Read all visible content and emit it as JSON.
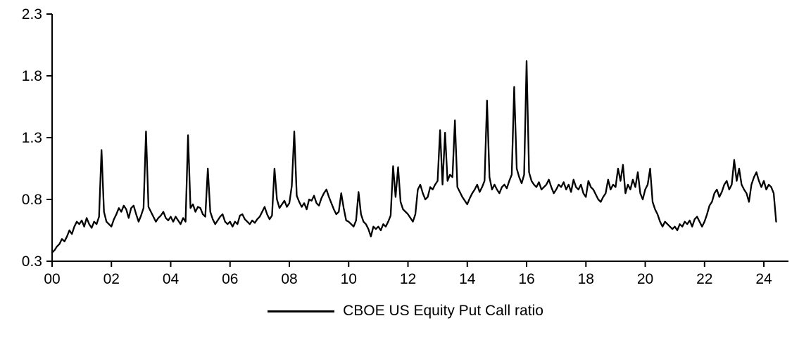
{
  "chart_data": {
    "type": "line",
    "title": "",
    "xlabel": "",
    "ylabel": "",
    "series_name": "CBOE US Equity Put Call ratio",
    "line_color": "#000000",
    "axis_color": "#000000",
    "background_color": "#ffffff",
    "grid": false,
    "legend_position": "bottom-center",
    "ylim": [
      0.3,
      2.3
    ],
    "xlim": [
      2000.0,
      2024.83
    ],
    "yticks": [
      0.3,
      0.8,
      1.3,
      1.8,
      2.3
    ],
    "ytick_labels": [
      "0.3",
      "0.8",
      "1.3",
      "1.8",
      "2.3"
    ],
    "xticks": [
      2000,
      2002,
      2004,
      2006,
      2008,
      2010,
      2012,
      2014,
      2016,
      2018,
      2020,
      2022,
      2024
    ],
    "xtick_labels": [
      "00",
      "02",
      "04",
      "06",
      "08",
      "10",
      "12",
      "14",
      "16",
      "18",
      "20",
      "22",
      "24"
    ],
    "x_start_year": 2000.0,
    "x_step_years": 0.08333,
    "values": [
      0.37,
      0.39,
      0.42,
      0.44,
      0.48,
      0.46,
      0.5,
      0.55,
      0.52,
      0.58,
      0.62,
      0.6,
      0.63,
      0.58,
      0.65,
      0.6,
      0.57,
      0.62,
      0.6,
      0.66,
      1.2,
      0.7,
      0.62,
      0.6,
      0.58,
      0.64,
      0.68,
      0.73,
      0.7,
      0.75,
      0.72,
      0.65,
      0.73,
      0.75,
      0.68,
      0.62,
      0.67,
      0.73,
      1.35,
      0.74,
      0.7,
      0.66,
      0.62,
      0.65,
      0.67,
      0.7,
      0.65,
      0.63,
      0.66,
      0.62,
      0.66,
      0.63,
      0.6,
      0.65,
      0.62,
      1.32,
      0.73,
      0.76,
      0.7,
      0.74,
      0.73,
      0.68,
      0.66,
      1.05,
      0.7,
      0.64,
      0.6,
      0.63,
      0.66,
      0.68,
      0.62,
      0.6,
      0.62,
      0.58,
      0.62,
      0.6,
      0.67,
      0.68,
      0.64,
      0.62,
      0.6,
      0.63,
      0.61,
      0.64,
      0.66,
      0.7,
      0.74,
      0.68,
      0.64,
      0.67,
      1.05,
      0.8,
      0.73,
      0.76,
      0.79,
      0.74,
      0.77,
      0.91,
      1.35,
      0.83,
      0.78,
      0.74,
      0.77,
      0.72,
      0.8,
      0.79,
      0.83,
      0.77,
      0.75,
      0.81,
      0.85,
      0.88,
      0.82,
      0.77,
      0.72,
      0.68,
      0.7,
      0.85,
      0.73,
      0.63,
      0.62,
      0.6,
      0.58,
      0.63,
      0.86,
      0.68,
      0.62,
      0.6,
      0.56,
      0.5,
      0.58,
      0.56,
      0.58,
      0.55,
      0.6,
      0.58,
      0.62,
      0.67,
      1.07,
      0.82,
      1.06,
      0.78,
      0.72,
      0.7,
      0.68,
      0.65,
      0.62,
      0.68,
      0.88,
      0.92,
      0.85,
      0.8,
      0.82,
      0.9,
      0.88,
      0.92,
      0.95,
      1.36,
      0.92,
      1.34,
      0.95,
      1.0,
      0.98,
      1.44,
      0.9,
      0.86,
      0.82,
      0.79,
      0.76,
      0.81,
      0.85,
      0.88,
      0.92,
      0.86,
      0.9,
      0.95,
      1.6,
      0.98,
      0.88,
      0.92,
      0.88,
      0.85,
      0.9,
      0.92,
      0.89,
      0.95,
      1.0,
      1.71,
      1.05,
      0.98,
      0.93,
      1.0,
      1.92,
      1.02,
      0.95,
      0.92,
      0.9,
      0.94,
      0.88,
      0.9,
      0.92,
      0.96,
      0.9,
      0.85,
      0.88,
      0.92,
      0.9,
      0.94,
      0.88,
      0.92,
      0.86,
      0.96,
      0.9,
      0.88,
      0.92,
      0.85,
      0.82,
      0.95,
      0.9,
      0.88,
      0.84,
      0.8,
      0.78,
      0.82,
      0.85,
      0.96,
      0.88,
      0.92,
      0.9,
      1.05,
      0.95,
      1.08,
      0.85,
      0.92,
      0.88,
      0.96,
      0.9,
      1.02,
      0.85,
      0.8,
      0.88,
      0.92,
      1.05,
      0.78,
      0.72,
      0.68,
      0.62,
      0.58,
      0.62,
      0.6,
      0.58,
      0.56,
      0.58,
      0.55,
      0.6,
      0.58,
      0.62,
      0.6,
      0.63,
      0.58,
      0.64,
      0.66,
      0.62,
      0.58,
      0.62,
      0.68,
      0.75,
      0.78,
      0.85,
      0.88,
      0.82,
      0.86,
      0.92,
      0.95,
      0.88,
      0.92,
      1.12,
      0.95,
      1.05,
      0.92,
      0.88,
      0.85,
      0.78,
      0.92,
      0.98,
      1.02,
      0.95,
      0.9,
      0.95,
      0.88,
      0.92,
      0.9,
      0.85,
      0.62
    ]
  }
}
